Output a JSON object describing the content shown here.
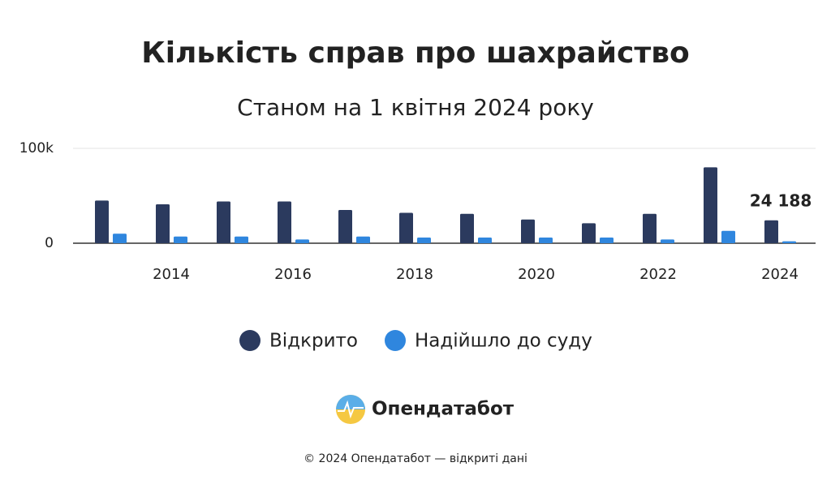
{
  "chart_data": {
    "type": "bar",
    "title": "Кількість справ про шахрайство",
    "subtitle": "Станом на 1 квітня 2024 року",
    "categories": [
      null,
      "2014",
      null,
      "2016",
      null,
      "2018",
      null,
      "2020",
      null,
      "2022",
      null,
      "2024"
    ],
    "series": [
      {
        "name": "Відкрито",
        "color": "#2b3a5e",
        "values": [
          45000,
          41000,
          44000,
          44000,
          35000,
          32000,
          31000,
          25000,
          21000,
          31000,
          80000,
          24188
        ],
        "value_labels": [
          null,
          null,
          null,
          null,
          null,
          null,
          null,
          null,
          null,
          null,
          null,
          "24 188"
        ]
      },
      {
        "name": "Надійшло до суду",
        "color": "#2f86de",
        "values": [
          10000,
          7000,
          7000,
          4000,
          7000,
          6000,
          6000,
          6000,
          6000,
          4000,
          13000,
          2000
        ]
      }
    ],
    "ylim": [
      0,
      100000
    ],
    "yticks": [
      0,
      {
        "value": 100000,
        "label": "100k"
      }
    ],
    "grid": true,
    "brand": "Опендатабот",
    "footer": "© 2024 Опендатабот — відкриті дані"
  }
}
